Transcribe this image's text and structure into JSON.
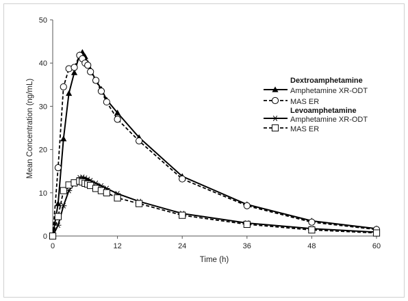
{
  "chart_data": {
    "type": "line",
    "title": "",
    "xlabel": "Time (h)",
    "ylabel": "Mean Concentration (ng/mL)",
    "xlim": [
      0,
      60
    ],
    "ylim": [
      0,
      50
    ],
    "xticks": [
      0,
      12,
      24,
      36,
      48,
      60
    ],
    "yticks": [
      0,
      10,
      20,
      30,
      40,
      50
    ],
    "grid": false,
    "legend_position": "right",
    "groups": [
      {
        "heading": "Dextroamphetamine",
        "series_indices": [
          0,
          1
        ]
      },
      {
        "heading": "Levoamphetamine",
        "series_indices": [
          2,
          3
        ]
      }
    ],
    "series": [
      {
        "name": "Amphetamine XR-ODT",
        "line": "solid",
        "marker": "filled-triangle",
        "x": [
          0,
          1,
          2,
          3,
          4,
          5,
          5.5,
          6,
          6.5,
          7,
          8,
          9,
          10,
          12,
          16,
          24,
          36,
          48,
          60
        ],
        "y": [
          0,
          7.5,
          22.5,
          33,
          37.8,
          42,
          42.5,
          41.5,
          40,
          38.5,
          36,
          34,
          31.5,
          28.5,
          22.8,
          13.8,
          7.3,
          3.5,
          1.7
        ]
      },
      {
        "name": "MAS ER",
        "line": "dashed",
        "marker": "open-circle",
        "x": [
          0,
          1,
          2,
          3,
          4,
          5,
          5.5,
          6,
          6.5,
          7,
          8,
          9,
          10,
          12,
          16,
          24,
          36,
          48,
          60
        ],
        "y": [
          0,
          15.8,
          34.5,
          38.7,
          39,
          41.8,
          41,
          40,
          39.5,
          38,
          36,
          33.5,
          31,
          27,
          22,
          13.2,
          7,
          3.2,
          1.5
        ]
      },
      {
        "name": "Amphetamine XR-ODT",
        "line": "solid",
        "marker": "asterisk",
        "x": [
          0,
          1,
          2,
          3,
          4,
          5,
          5.5,
          6,
          6.5,
          7,
          8,
          9,
          10,
          12,
          16,
          24,
          36,
          48,
          60
        ],
        "y": [
          0,
          2.5,
          7,
          10.5,
          12,
          13.5,
          13.6,
          13.4,
          13.1,
          12.8,
          12.2,
          11.6,
          11,
          9.8,
          8,
          5.2,
          3,
          1.7,
          0.9
        ]
      },
      {
        "name": "MAS ER",
        "line": "dashed",
        "marker": "open-square",
        "x": [
          0,
          1,
          2,
          3,
          4,
          5,
          5.5,
          6,
          6.5,
          7,
          8,
          9,
          10,
          12,
          16,
          24,
          36,
          48,
          60
        ],
        "y": [
          0,
          4.5,
          10.5,
          11.8,
          12.3,
          12.7,
          12.5,
          12.2,
          12,
          11.7,
          11,
          10.5,
          10,
          8.8,
          7.5,
          4.8,
          2.7,
          1.4,
          0.7
        ]
      }
    ]
  }
}
